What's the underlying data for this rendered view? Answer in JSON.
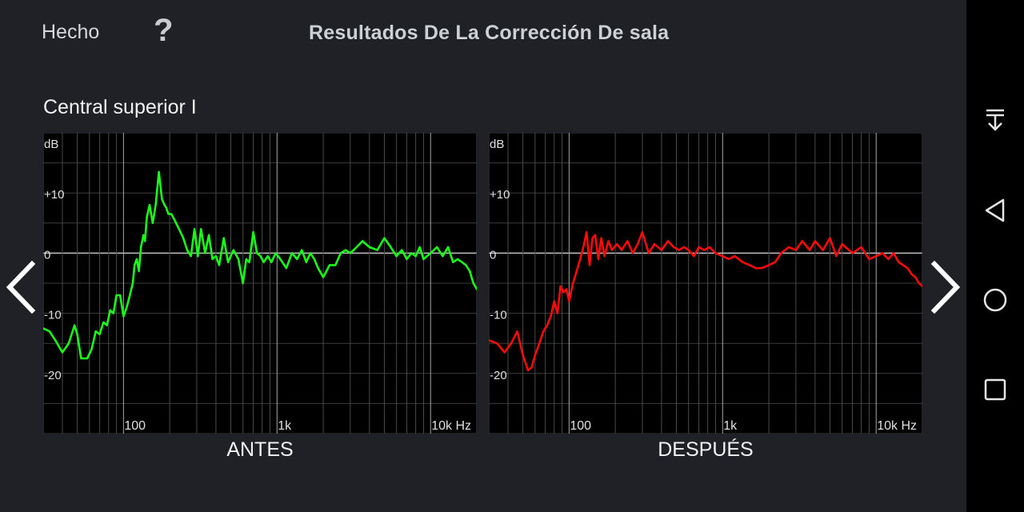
{
  "header": {
    "done_label": "Hecho",
    "help_glyph": "?",
    "title": "Resultados De La Corrección De sala"
  },
  "channel_name": "Central superior I",
  "navigation": {
    "prev_icon": "chevron-left-icon",
    "next_icon": "chevron-right-icon"
  },
  "system_bar": {
    "icons": [
      "notification-pull-icon",
      "back-triangle-icon",
      "home-circle-icon",
      "recents-square-icon"
    ]
  },
  "chart_data": [
    {
      "type": "line",
      "title": "ANTES",
      "xlabel": "",
      "ylabel": "dB",
      "x_scale": "log",
      "xlim": [
        30,
        20000
      ],
      "ylim": [
        -30,
        20
      ],
      "y_ticks": [
        {
          "value": 10,
          "label": "+10"
        },
        {
          "value": 0,
          "label": "0"
        },
        {
          "value": -10,
          "label": "-10"
        },
        {
          "value": -20,
          "label": "-20"
        }
      ],
      "x_ticks": [
        {
          "value": 100,
          "label": "100"
        },
        {
          "value": 1000,
          "label": "1k"
        },
        {
          "value": 10000,
          "label": "10k Hz"
        }
      ],
      "grid": true,
      "series": [
        {
          "color": "#19ff19",
          "x": [
            30,
            33,
            36,
            40,
            44,
            48,
            50,
            53,
            58,
            62,
            66,
            70,
            74,
            78,
            82,
            86,
            90,
            95,
            100,
            105,
            110,
            115,
            118,
            122,
            126,
            130,
            135,
            138,
            142,
            148,
            155,
            162,
            170,
            178,
            185,
            190,
            196,
            205,
            215,
            230,
            245,
            260,
            275,
            290,
            305,
            320,
            340,
            360,
            380,
            400,
            420,
            450,
            480,
            520,
            560,
            600,
            630,
            660,
            700,
            740,
            780,
            820,
            870,
            920,
            980,
            1050,
            1150,
            1250,
            1350,
            1450,
            1550,
            1650,
            1750,
            1850,
            2000,
            2200,
            2400,
            2600,
            2800,
            3000,
            3300,
            3600,
            4000,
            4500,
            5000,
            5500,
            6000,
            6500,
            7000,
            7500,
            8000,
            8500,
            9000,
            10000,
            11000,
            12000,
            13000,
            14000,
            15000,
            16000,
            17000,
            18000,
            19000,
            20000
          ],
          "y": [
            -12.5,
            -13,
            -14.5,
            -16.5,
            -15,
            -12,
            -13.5,
            -17.5,
            -17.5,
            -16,
            -13,
            -13.5,
            -11.5,
            -12,
            -9.5,
            -10,
            -7,
            -7,
            -10.5,
            -9,
            -7,
            -5,
            -2,
            -1,
            -3,
            1,
            3,
            2,
            6,
            8,
            5,
            8,
            13.5,
            9,
            8,
            7.5,
            6.5,
            6.5,
            5.5,
            4,
            2.5,
            0.5,
            -0.5,
            4,
            -0.5,
            4,
            0,
            3,
            -1,
            -0.5,
            -2,
            2.5,
            -1.5,
            0.5,
            -1,
            -5,
            -1,
            -1.5,
            3.5,
            0,
            -0.5,
            -1.5,
            -0.5,
            -1.5,
            0,
            -1,
            -2.5,
            0,
            -1,
            0.5,
            -1.5,
            0,
            -1,
            -2.5,
            -4,
            -2,
            -2,
            0,
            0.5,
            0,
            1,
            2,
            1,
            0.5,
            2.5,
            1,
            -0.5,
            0.5,
            -1,
            0,
            -0.5,
            1,
            -1,
            0,
            1,
            -0.5,
            1,
            -1.5,
            -1,
            -1.5,
            -2,
            -3,
            -5,
            -6
          ]
        }
      ]
    },
    {
      "type": "line",
      "title": "DESPUÉS",
      "xlabel": "",
      "ylabel": "dB",
      "x_scale": "log",
      "xlim": [
        30,
        20000
      ],
      "ylim": [
        -30,
        20
      ],
      "y_ticks": [
        {
          "value": 10,
          "label": "+10"
        },
        {
          "value": 0,
          "label": "0"
        },
        {
          "value": -10,
          "label": "-10"
        },
        {
          "value": -20,
          "label": "-20"
        }
      ],
      "x_ticks": [
        {
          "value": 100,
          "label": "100"
        },
        {
          "value": 1000,
          "label": "1k"
        },
        {
          "value": 10000,
          "label": "10k Hz"
        }
      ],
      "grid": true,
      "series": [
        {
          "color": "#ff0a0a",
          "x": [
            30,
            34,
            38,
            42,
            46,
            50,
            54,
            57,
            60,
            64,
            68,
            72,
            76,
            80,
            84,
            88,
            92,
            96,
            100,
            106,
            112,
            118,
            124,
            130,
            136,
            142,
            148,
            155,
            162,
            170,
            180,
            190,
            205,
            220,
            240,
            260,
            280,
            300,
            330,
            360,
            400,
            440,
            480,
            520,
            560,
            600,
            650,
            700,
            760,
            820,
            900,
            1000,
            1100,
            1200,
            1350,
            1500,
            1650,
            1800,
            2000,
            2200,
            2400,
            2700,
            3000,
            3300,
            3700,
            4000,
            4500,
            5000,
            5500,
            6000,
            7000,
            8000,
            9000,
            10000,
            11000,
            12000,
            13000,
            14000,
            15000,
            16000,
            17000,
            18000,
            19000,
            20000
          ],
          "y": [
            -14.5,
            -15,
            -16.5,
            -15,
            -13,
            -17,
            -19.5,
            -19,
            -17,
            -15,
            -13,
            -12,
            -10.5,
            -8,
            -10,
            -5.5,
            -6.5,
            -6,
            -8,
            -5,
            -3,
            -1,
            1,
            3.5,
            -2,
            2.5,
            3,
            -1,
            2.5,
            -0.5,
            2,
            0.5,
            1.5,
            0.5,
            2,
            0,
            1.5,
            3.5,
            0,
            1.5,
            0.5,
            2,
            1,
            0.5,
            1,
            0.5,
            -0.5,
            1,
            0.5,
            1,
            0,
            -0.5,
            -1,
            -0.5,
            -1.5,
            -2,
            -2.5,
            -2.5,
            -2,
            -1.5,
            0,
            1,
            0.5,
            2,
            0.5,
            2,
            0.5,
            2.5,
            -0.5,
            1.5,
            0,
            1,
            -1,
            -0.5,
            0,
            -1,
            0,
            -1.5,
            -2,
            -2.5,
            -3.5,
            -4,
            -5,
            -5.5
          ]
        }
      ]
    }
  ]
}
